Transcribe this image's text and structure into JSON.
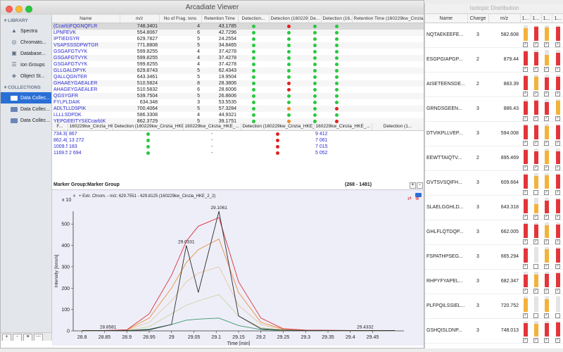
{
  "window": {
    "title": "Arcadiate Viewer"
  },
  "sidebar": {
    "library_header": "LIBRARY",
    "library_items": [
      {
        "label": "Spectra",
        "icon": "spectra-icon"
      },
      {
        "label": "Chromato...",
        "icon": "chromatogram-icon"
      },
      {
        "label": "Database...",
        "icon": "database-icon"
      },
      {
        "label": "Ion Groups",
        "icon": "ion-groups-icon"
      },
      {
        "label": "Object St...",
        "icon": "object-store-icon"
      }
    ],
    "collections_header": "COLLECTIONS",
    "collection_items": [
      {
        "label": "Data Collec...",
        "selected": true
      },
      {
        "label": "Data Collec...",
        "selected": false
      },
      {
        "label": "Data Collec...",
        "selected": false
      }
    ],
    "footer_buttons": [
      "+",
      "-",
      "≡",
      "⋯"
    ]
  },
  "peptide_table": {
    "headers": [
      "Name",
      "m/z",
      "No of Frag. Ions",
      "Retention Time",
      "Detection...",
      "Detection (160229...",
      "De...",
      "Detection (16...",
      "Retention Time (160229kw_Cinzia_HKE_2_1)"
    ],
    "rows": [
      {
        "name": "(Ccarb)FQGNQFLR",
        "mz": "748.3401",
        "ions": "4",
        "rt": "43.1785",
        "d": [
          "g",
          "r",
          "g",
          "g"
        ]
      },
      {
        "name": "LPNFEVK",
        "mz": "554.8067",
        "ions": "6",
        "rt": "42.7296",
        "d": [
          "g",
          "g",
          "g",
          "g"
        ]
      },
      {
        "name": "IPTIEDSYR",
        "mz": "629.7827",
        "ions": "5",
        "rt": "24.2554",
        "d": [
          "g",
          "g",
          "g",
          "g"
        ]
      },
      {
        "name": "VSAPSSSDPWTGR",
        "mz": "771.8808",
        "ions": "5",
        "rt": "34.8465",
        "d": [
          "g",
          "g",
          "g",
          "g"
        ]
      },
      {
        "name": "GSGAFGTVYK",
        "mz": "599.8255",
        "ions": "4",
        "rt": "37.4278",
        "d": [
          "g",
          "g",
          "g",
          "g"
        ]
      },
      {
        "name": "GSGAFGTVYK",
        "mz": "599.8255",
        "ions": "4",
        "rt": "37.4278",
        "d": [
          "g",
          "g",
          "g",
          "g"
        ]
      },
      {
        "name": "GSGAFGTVYK",
        "mz": "599.8255",
        "ions": "4",
        "rt": "37.4278",
        "d": [
          "g",
          "g",
          "g",
          "g"
        ]
      },
      {
        "name": "GLLGALDPYK",
        "mz": "629.8743",
        "ions": "5",
        "rt": "62.4343",
        "d": [
          "g",
          "g",
          "g",
          "g"
        ]
      },
      {
        "name": "QALLQGNTER",
        "mz": "643.3461",
        "ions": "5",
        "rt": "19.9504",
        "d": [
          "g",
          "g",
          "g",
          "g"
        ]
      },
      {
        "name": "GHAAEYGAEALER",
        "mz": "510.5824",
        "ions": "8",
        "rt": "28.3806",
        "d": [
          "g",
          "r",
          "g",
          "g"
        ]
      },
      {
        "name": "AHAGEYGAEALER",
        "mz": "510.5832",
        "ions": "6",
        "rt": "28.6006",
        "d": [
          "g",
          "r",
          "g",
          "g"
        ]
      },
      {
        "name": "QGSYGFR",
        "mz": "539.7504",
        "ions": "5",
        "rt": "26.8606",
        "d": [
          "g",
          "g",
          "g",
          "g"
        ]
      },
      {
        "name": "FYLPLDAIK",
        "mz": "634.348",
        "ions": "3",
        "rt": "53.5535",
        "d": [
          "g",
          "g",
          "g",
          "g"
        ]
      },
      {
        "name": "ADLTLLDSPIK",
        "mz": "700.4064",
        "ions": "5",
        "rt": "57.3284",
        "d": [
          "g",
          "o",
          "g",
          "r"
        ]
      },
      {
        "name": "LLLLSDPDK",
        "mz": "586.3308",
        "ions": "4",
        "rt": "44.9321",
        "d": [
          "g",
          "g",
          "g",
          "g"
        ]
      },
      {
        "name": "YEPGEEITYSI(Ccarb)K",
        "mz": "862.3729",
        "ions": "5",
        "rt": "39.1751",
        "d": [
          "g",
          "o",
          "g",
          "r"
        ]
      }
    ]
  },
  "fragment_table": {
    "headers": [
      "F...",
      "160229kw_Cinzia_HKE_...",
      "Detection (160229kw_Cinzia_HKE_2_...",
      "160229kw_Cinzia_HKE_...",
      "Detection (160229kw_Cinzia_HKE_...",
      "160229kw_Cinzia_HKE_...",
      "Detection (1..."
    ],
    "rows": [
      {
        "f": "734.3(",
        "a": "867",
        "d1": "g",
        "b": "-",
        "d2": "r",
        "c": "9 412"
      },
      {
        "f": "862.4(",
        "a": "13 272",
        "d1": "g",
        "b": "-",
        "d2": "r",
        "c": "7 061"
      },
      {
        "f": "1009.5",
        "a": "183",
        "d1": "g",
        "b": "-",
        "d2": "r",
        "c": "7 015"
      },
      {
        "f": "1169.5",
        "a": "2 694",
        "d1": "g",
        "b": "-",
        "d2": "r",
        "c": "5 052"
      }
    ]
  },
  "marker_group": {
    "label": "Marker Group:",
    "value": "Marker Group",
    "range": "(268 - 1481)"
  },
  "chart_data": {
    "type": "line",
    "title": "+ Extr. Chrom. - m/z: 629.7551 - 629.8125 (160229kw_Cinzia_HKE_2_2)",
    "xlabel": "Time [min]",
    "ylabel": "Intensity [Ions/s]",
    "y_multiplier": "x 10",
    "y_exponent": "4",
    "xlim": [
      28.78,
      29.52
    ],
    "ylim": [
      0,
      560
    ],
    "x_ticks": [
      28.8,
      28.85,
      28.9,
      28.95,
      29.0,
      29.05,
      29.1,
      29.15,
      29.2,
      29.25,
      29.3,
      29.35,
      29.4,
      29.45
    ],
    "x_tick_labels": [
      "28.8",
      "28.85",
      "28.9",
      "28.95",
      "29",
      "29.05",
      "29.1",
      "29.15",
      "29.2",
      "29.25",
      "29.3",
      "29.35",
      "29.4",
      "29.45"
    ],
    "y_ticks": [
      0,
      100,
      200,
      300,
      400,
      500
    ],
    "x": [
      28.8,
      28.85,
      28.9,
      28.95,
      29.0,
      29.0331,
      29.06,
      29.1061,
      29.15,
      29.2,
      29.25,
      29.3,
      29.35,
      29.4,
      29.4332,
      29.5
    ],
    "series": [
      {
        "color": "#2b2b2b",
        "values": [
          2,
          2,
          2,
          5,
          30,
          400,
          180,
          560,
          70,
          10,
          3,
          2,
          2,
          2,
          2,
          2
        ]
      },
      {
        "color": "#d9303a",
        "values": [
          2,
          2,
          5,
          80,
          260,
          420,
          490,
          530,
          230,
          60,
          10,
          4,
          3,
          2,
          2,
          2
        ]
      },
      {
        "color": "#e8913a",
        "values": [
          2,
          2,
          4,
          60,
          200,
          320,
          380,
          430,
          180,
          40,
          8,
          3,
          2,
          2,
          2,
          2
        ]
      },
      {
        "color": "#e8c89a",
        "values": [
          2,
          2,
          3,
          40,
          140,
          230,
          270,
          300,
          120,
          30,
          6,
          3,
          2,
          2,
          2,
          2
        ]
      },
      {
        "color": "#c8d4a0",
        "values": [
          1,
          1,
          2,
          20,
          80,
          120,
          140,
          170,
          70,
          15,
          4,
          2,
          1,
          1,
          1,
          1
        ]
      },
      {
        "color": "#3a9a6a",
        "values": [
          1,
          1,
          1,
          8,
          30,
          50,
          55,
          60,
          25,
          6,
          2,
          1,
          1,
          1,
          1,
          1
        ]
      }
    ],
    "annotations": [
      {
        "text": "28.8581",
        "x": 28.8581,
        "y": 2
      },
      {
        "text": "29.0331",
        "x": 29.0331,
        "y": 400
      },
      {
        "text": "29.1061",
        "x": 29.1061,
        "y": 560
      },
      {
        "text": "29.4332",
        "x": 29.4332,
        "y": 2
      }
    ]
  },
  "isotopic": {
    "title": "Isotopic Distribution",
    "headers": [
      "Name",
      "Charge",
      "m/z",
      "1...",
      "1...",
      "1...",
      "1..."
    ],
    "rows": [
      {
        "name": "NQTAEKEEFE...",
        "charge": "3",
        "mz": "582.608",
        "bars": [
          0.8,
          0.9,
          0.85,
          0.9
        ],
        "colors": [
          "#f3b23a",
          "#e3353a",
          "#f3b23a",
          "#e3353a"
        ],
        "checks": [
          true,
          true,
          true,
          true
        ]
      },
      {
        "name": "ESGPGIAPGP...",
        "charge": "2",
        "mz": "879.44",
        "bars": [
          0.9,
          0.85,
          0.7,
          0.8
        ],
        "colors": [
          "#e3353a",
          "#e3353a",
          "#f3b23a",
          "#e3353a"
        ],
        "checks": [
          true,
          true,
          true,
          true
        ]
      },
      {
        "name": "AISETEENSDE...",
        "charge": "2",
        "mz": "883.39",
        "bars": [
          0.9,
          0.85,
          0.8,
          0.85
        ],
        "colors": [
          "#e3353a",
          "#f3b23a",
          "#e3353a",
          "#e3353a"
        ],
        "checks": [
          true,
          true,
          true,
          true
        ]
      },
      {
        "name": "GRNDSGEEN...",
        "charge": "3",
        "mz": "886.43",
        "bars": [
          0.85,
          0.9,
          0.8,
          0.9
        ],
        "colors": [
          "#e3353a",
          "#e3353a",
          "#e3353a",
          "#f3b23a"
        ],
        "checks": [
          true,
          true,
          true,
          true
        ]
      },
      {
        "name": "DTVIKPLLVEP...",
        "charge": "3",
        "mz": "594.008",
        "bars": [
          0.9,
          0.9,
          0.85,
          0.9
        ],
        "colors": [
          "#e3353a",
          "#e3353a",
          "#f3b23a",
          "#e3353a"
        ],
        "checks": [
          true,
          true,
          true,
          true
        ]
      },
      {
        "name": "EEWTTAIQTV...",
        "charge": "2",
        "mz": "895.469",
        "bars": [
          0.9,
          0.8,
          0.85,
          0.8
        ],
        "colors": [
          "#e3353a",
          "#e3353a",
          "#f3b23a",
          "#e3353a"
        ],
        "checks": [
          true,
          true,
          true,
          true
        ]
      },
      {
        "name": "GVTSVSQIFH...",
        "charge": "3",
        "mz": "609.664",
        "bars": [
          0.9,
          0.8,
          0.85,
          0.9
        ],
        "colors": [
          "#e3353a",
          "#f3b23a",
          "#f3b23a",
          "#e3353a"
        ],
        "checks": [
          true,
          false,
          true,
          true
        ]
      },
      {
        "name": "SLAELGGHLD...",
        "charge": "3",
        "mz": "643.318",
        "bars": [
          0.9,
          0.6,
          0.8,
          0.9
        ],
        "colors": [
          "#e3353a",
          "#f3b23a",
          "#e3353a",
          "#e3353a"
        ],
        "checks": [
          true,
          true,
          true,
          true
        ]
      },
      {
        "name": "GHLFLQTDQP...",
        "charge": "3",
        "mz": "662.005",
        "bars": [
          0.9,
          0.85,
          0.8,
          0.85
        ],
        "colors": [
          "#e3353a",
          "#e3353a",
          "#f3b23a",
          "#e3353a"
        ],
        "checks": [
          true,
          true,
          true,
          true
        ]
      },
      {
        "name": "FSPATHPSEG...",
        "charge": "3",
        "mz": "665.294",
        "bars": [
          0.9,
          0.0,
          0.85,
          0.9
        ],
        "colors": [
          "#e3353a",
          "#e3353a",
          "#f3b23a",
          "#e3353a"
        ],
        "checks": [
          true,
          false,
          true,
          true
        ]
      },
      {
        "name": "RHPYFYAPEL...",
        "charge": "3",
        "mz": "682.347",
        "bars": [
          0.8,
          0.8,
          0.85,
          0.9
        ],
        "colors": [
          "#e3353a",
          "#f3b23a",
          "#e3353a",
          "#e3353a"
        ],
        "checks": [
          true,
          true,
          true,
          true
        ]
      },
      {
        "name": "PLFPQILSSIEL...",
        "charge": "3",
        "mz": "720.752",
        "bars": [
          0.85,
          0.0,
          0.8,
          0.0
        ],
        "colors": [
          "#f3b23a",
          "#e3353a",
          "#f3b23a",
          "#e3353a"
        ],
        "checks": [
          true,
          false,
          true,
          false
        ]
      },
      {
        "name": "GSHQISLDNP...",
        "charge": "3",
        "mz": "748.013",
        "bars": [
          0.85,
          0.8,
          0.85,
          0.9
        ],
        "colors": [
          "#e3353a",
          "#f3b23a",
          "#e3353a",
          "#e3353a"
        ],
        "checks": [
          true,
          true,
          true,
          true
        ]
      }
    ]
  }
}
